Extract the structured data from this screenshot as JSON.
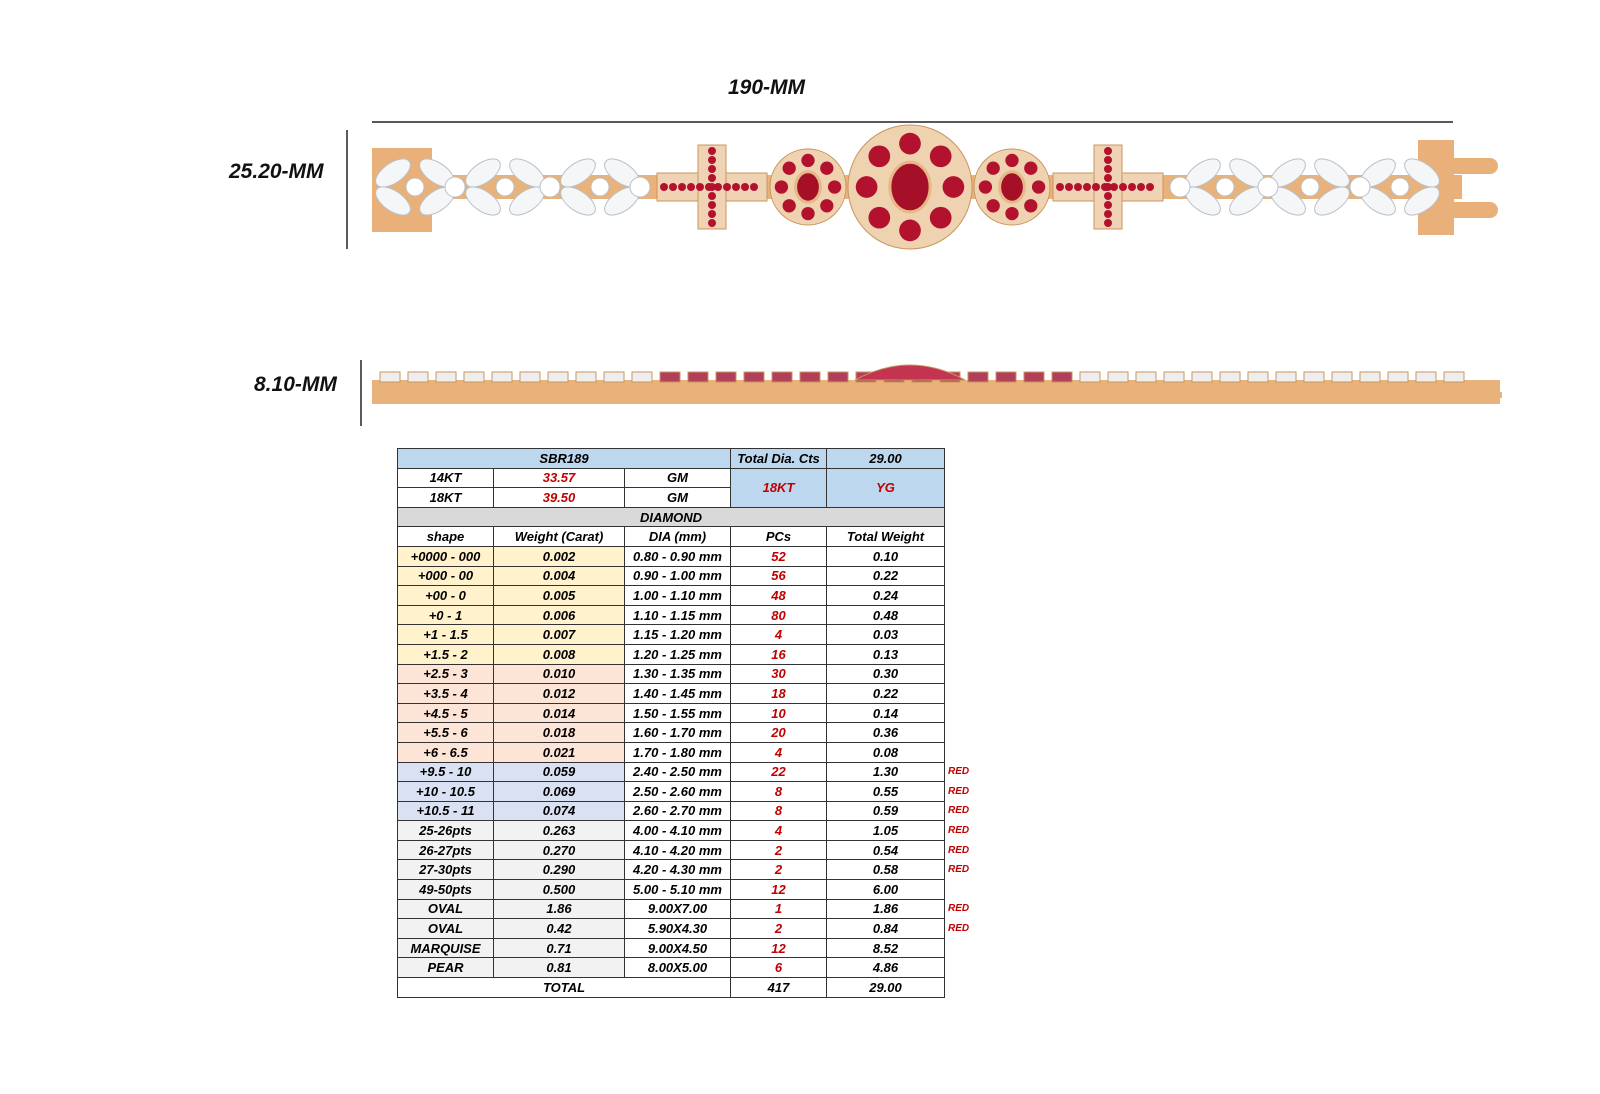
{
  "dimensions": {
    "length": "190-MM",
    "width": "25.20-MM",
    "height": "8.10-MM"
  },
  "table": {
    "header": {
      "style": "SBR189",
      "total_label": "Total Dia. Cts",
      "total_value": "29.00"
    },
    "metals": [
      {
        "karat": "14KT",
        "weight": "33.57",
        "unit": "GM"
      },
      {
        "karat": "18KT",
        "weight": "39.50",
        "unit": "GM"
      }
    ],
    "selected_karat": "18KT",
    "selected_color": "YG",
    "section": "DIAMOND",
    "columns": [
      "shape",
      "Weight (Carat)",
      "DIA (mm)",
      "PCs",
      "Total Weight"
    ],
    "rows": [
      {
        "shape": "+0000 - 000",
        "weight": "0.002",
        "dia": "0.80 - 0.90 mm",
        "pcs": "52",
        "total_weight": "0.10"
      },
      {
        "shape": "+000 - 00",
        "weight": "0.004",
        "dia": "0.90 - 1.00 mm",
        "pcs": "56",
        "total_weight": "0.22"
      },
      {
        "shape": "+00 - 0",
        "weight": "0.005",
        "dia": "1.00 - 1.10 mm",
        "pcs": "48",
        "total_weight": "0.24"
      },
      {
        "shape": "+0 - 1",
        "weight": "0.006",
        "dia": "1.10 - 1.15 mm",
        "pcs": "80",
        "total_weight": "0.48"
      },
      {
        "shape": "+1 - 1.5",
        "weight": "0.007",
        "dia": "1.15 - 1.20 mm",
        "pcs": "4",
        "total_weight": "0.03"
      },
      {
        "shape": "+1.5 - 2",
        "weight": "0.008",
        "dia": "1.20 - 1.25 mm",
        "pcs": "16",
        "total_weight": "0.13"
      },
      {
        "shape": "+2.5 - 3",
        "weight": "0.010",
        "dia": "1.30 - 1.35 mm",
        "pcs": "30",
        "total_weight": "0.30"
      },
      {
        "shape": "+3.5 - 4",
        "weight": "0.012",
        "dia": "1.40 - 1.45 mm",
        "pcs": "18",
        "total_weight": "0.22"
      },
      {
        "shape": "+4.5 - 5",
        "weight": "0.014",
        "dia": "1.50 - 1.55 mm",
        "pcs": "10",
        "total_weight": "0.14"
      },
      {
        "shape": "+5.5 - 6",
        "weight": "0.018",
        "dia": "1.60 - 1.70 mm",
        "pcs": "20",
        "total_weight": "0.36"
      },
      {
        "shape": "+6 - 6.5",
        "weight": "0.021",
        "dia": "1.70 - 1.80 mm",
        "pcs": "4",
        "total_weight": "0.08"
      },
      {
        "shape": "+9.5 - 10",
        "weight": "0.059",
        "dia": "2.40 - 2.50 mm",
        "pcs": "22",
        "total_weight": "1.30",
        "note": "RED"
      },
      {
        "shape": "+10 - 10.5",
        "weight": "0.069",
        "dia": "2.50 - 2.60 mm",
        "pcs": "8",
        "total_weight": "0.55",
        "note": "RED"
      },
      {
        "shape": "+10.5 - 11",
        "weight": "0.074",
        "dia": "2.60 - 2.70 mm",
        "pcs": "8",
        "total_weight": "0.59",
        "note": "RED"
      },
      {
        "shape": "25-26pts",
        "weight": "0.263",
        "dia": "4.00 - 4.10 mm",
        "pcs": "4",
        "total_weight": "1.05",
        "note": "RED"
      },
      {
        "shape": "26-27pts",
        "weight": "0.270",
        "dia": "4.10 - 4.20 mm",
        "pcs": "2",
        "total_weight": "0.54",
        "note": "RED"
      },
      {
        "shape": "27-30pts",
        "weight": "0.290",
        "dia": "4.20 - 4.30 mm",
        "pcs": "2",
        "total_weight": "0.58",
        "note": "RED"
      },
      {
        "shape": "49-50pts",
        "weight": "0.500",
        "dia": "5.00 - 5.10 mm",
        "pcs": "12",
        "total_weight": "6.00"
      },
      {
        "shape": "OVAL",
        "weight": "1.86",
        "dia": "9.00X7.00",
        "pcs": "1",
        "total_weight": "1.86",
        "note": "RED"
      },
      {
        "shape": "OVAL",
        "weight": "0.42",
        "dia": "5.90X4.30",
        "pcs": "2",
        "total_weight": "0.84",
        "note": "RED"
      },
      {
        "shape": "MARQUISE",
        "weight": "0.71",
        "dia": "9.00X4.50",
        "pcs": "12",
        "total_weight": "8.52"
      },
      {
        "shape": "PEAR",
        "weight": "0.81",
        "dia": "8.00X5.00",
        "pcs": "6",
        "total_weight": "4.86"
      }
    ],
    "total": {
      "label": "TOTAL",
      "pcs": "417",
      "total_weight": "29.00"
    }
  }
}
